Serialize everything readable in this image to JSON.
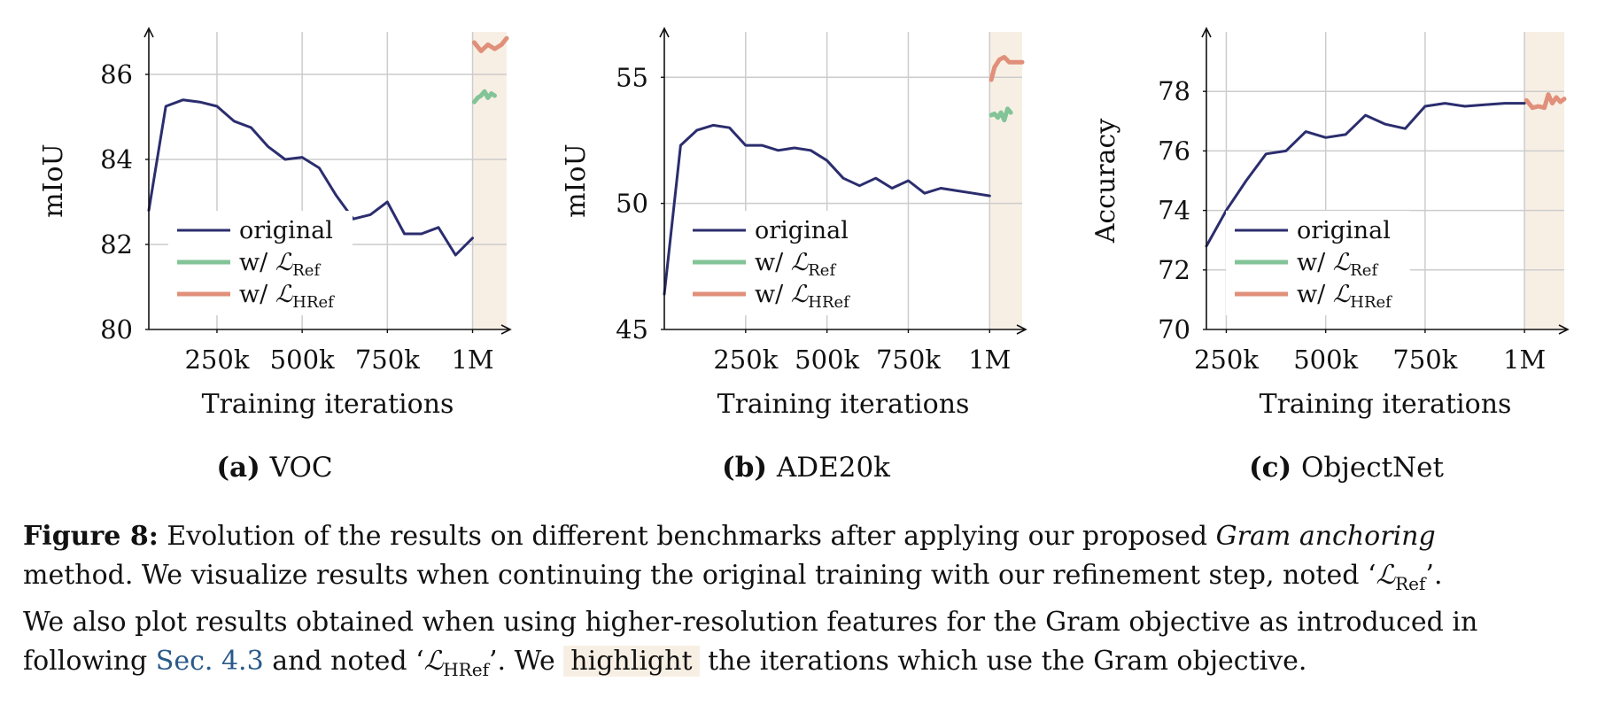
{
  "chart_data": [
    {
      "type": "line",
      "panel_label": "(a)",
      "title": "VOC",
      "xlabel": "Training iterations",
      "ylabel": "mIoU",
      "xlim": [
        50000,
        1100000
      ],
      "ylim": [
        80,
        87
      ],
      "yticks": [
        80,
        82,
        84,
        86
      ],
      "xticks": [
        250000,
        500000,
        750000,
        1000000
      ],
      "xtick_labels": [
        "250k",
        "500k",
        "750k",
        "1M"
      ],
      "highlight_range": [
        1000000,
        1100000
      ],
      "grid": true,
      "legend_position": "lower-left",
      "series": [
        {
          "name": "original",
          "color": "#2b2d6e",
          "x": [
            50000,
            100000,
            150000,
            200000,
            250000,
            300000,
            350000,
            400000,
            450000,
            500000,
            550000,
            600000,
            650000,
            700000,
            750000,
            800000,
            850000,
            900000,
            950000,
            1000000
          ],
          "y": [
            82.8,
            85.25,
            85.4,
            85.35,
            85.25,
            84.9,
            84.75,
            84.3,
            84.0,
            84.05,
            83.8,
            83.15,
            82.6,
            82.7,
            83.0,
            82.25,
            82.25,
            82.4,
            81.75,
            82.15
          ]
        },
        {
          "name": "w/ ",
          "name_sub": "Ref",
          "color": "#82c497",
          "x": [
            1005000,
            1015000,
            1025000,
            1035000,
            1045000,
            1055000,
            1065000
          ],
          "y": [
            85.35,
            85.45,
            85.5,
            85.6,
            85.45,
            85.55,
            85.5
          ]
        },
        {
          "name": "w/ ",
          "name_sub": "HRef",
          "color": "#e0907a",
          "x": [
            1005000,
            1025000,
            1045000,
            1065000,
            1085000,
            1100000
          ],
          "y": [
            86.75,
            86.55,
            86.7,
            86.6,
            86.7,
            86.85
          ]
        }
      ]
    },
    {
      "type": "line",
      "panel_label": "(b)",
      "title": "ADE20k",
      "xlabel": "Training iterations",
      "ylabel": "mIoU",
      "xlim": [
        0,
        1100000
      ],
      "ylim": [
        45,
        56.8
      ],
      "yticks": [
        45,
        50,
        55
      ],
      "xticks": [
        250000,
        500000,
        750000,
        1000000
      ],
      "xtick_labels": [
        "250k",
        "500k",
        "750k",
        "1M"
      ],
      "highlight_range": [
        1000000,
        1100000
      ],
      "grid": true,
      "legend_position": "lower-left",
      "series": [
        {
          "name": "original",
          "color": "#2b2d6e",
          "x": [
            0,
            50000,
            100000,
            150000,
            200000,
            250000,
            300000,
            350000,
            400000,
            450000,
            500000,
            550000,
            600000,
            650000,
            700000,
            750000,
            800000,
            850000,
            900000,
            950000,
            1000000
          ],
          "y": [
            46.4,
            52.3,
            52.9,
            53.1,
            53.0,
            52.3,
            52.3,
            52.1,
            52.2,
            52.1,
            51.7,
            51.0,
            50.7,
            51.0,
            50.6,
            50.9,
            50.4,
            50.6,
            50.5,
            50.4,
            50.3
          ]
        },
        {
          "name": "w/ ",
          "name_sub": "Ref",
          "color": "#82c497",
          "x": [
            1005000,
            1015000,
            1025000,
            1035000,
            1045000,
            1055000,
            1065000
          ],
          "y": [
            53.5,
            53.55,
            53.4,
            53.6,
            53.3,
            53.75,
            53.6
          ]
        },
        {
          "name": "w/ ",
          "name_sub": "HRef",
          "color": "#e0907a",
          "x": [
            1005000,
            1015000,
            1030000,
            1045000,
            1060000,
            1080000,
            1100000
          ],
          "y": [
            54.9,
            55.4,
            55.7,
            55.8,
            55.6,
            55.6,
            55.6
          ]
        }
      ]
    },
    {
      "type": "line",
      "panel_label": "(c)",
      "title": "ObjectNet",
      "xlabel": "Training iterations",
      "ylabel": "Accuracy",
      "xlim": [
        200000,
        1100000
      ],
      "ylim": [
        70,
        80
      ],
      "yticks": [
        70,
        72,
        74,
        76,
        78
      ],
      "xticks": [
        250000,
        500000,
        750000,
        1000000
      ],
      "xtick_labels": [
        "250k",
        "500k",
        "750k",
        "1M"
      ],
      "highlight_range": [
        1000000,
        1100000
      ],
      "grid": true,
      "legend_position": "lower-left",
      "series": [
        {
          "name": "original",
          "color": "#2b2d6e",
          "x": [
            200000,
            250000,
            300000,
            350000,
            400000,
            450000,
            500000,
            550000,
            600000,
            650000,
            700000,
            750000,
            800000,
            850000,
            900000,
            950000,
            1000000
          ],
          "y": [
            72.8,
            74.0,
            75.0,
            75.9,
            76.0,
            76.65,
            76.45,
            76.55,
            77.2,
            76.9,
            76.75,
            77.5,
            77.6,
            77.5,
            77.55,
            77.6,
            77.6
          ]
        },
        {
          "name": "w/ ",
          "name_sub": "Ref",
          "color": "#82c497",
          "x": [],
          "y": []
        },
        {
          "name": "w/ ",
          "name_sub": "HRef",
          "color": "#e0907a",
          "x": [
            1005000,
            1020000,
            1035000,
            1050000,
            1060000,
            1070000,
            1080000,
            1090000,
            1100000
          ],
          "y": [
            77.7,
            77.45,
            77.5,
            77.45,
            77.9,
            77.6,
            77.8,
            77.65,
            77.75
          ]
        }
      ]
    }
  ],
  "caption": {
    "label": "Figure 8:",
    "line1_text": "Evolution of the results on different benchmarks after applying our proposed",
    "line1_em": "Gram anchoring",
    "line2_text": "method. We visualize results when continuing the original training with our refinement step, noted ‘",
    "line2_math": "ℒ",
    "line2_sub": "Ref",
    "line2_end": "’.",
    "line3_text": "We also plot results obtained when using higher-resolution features for the Gram objective as introduced in",
    "line4_a": "following",
    "line4_link": "Sec. 4.3",
    "line4_b": "and noted ‘",
    "line4_math": "ℒ",
    "line4_sub": "HRef",
    "line4_c": "’. We",
    "line4_highlight": "highlight",
    "line4_d": "the iterations which use the Gram objective."
  },
  "colors": {
    "original": "#2b2d6e",
    "ref": "#82c497",
    "href": "#e0907a",
    "highlight": "#f8efe4",
    "grid": "#cccccc",
    "link": "#2a5a8a"
  }
}
